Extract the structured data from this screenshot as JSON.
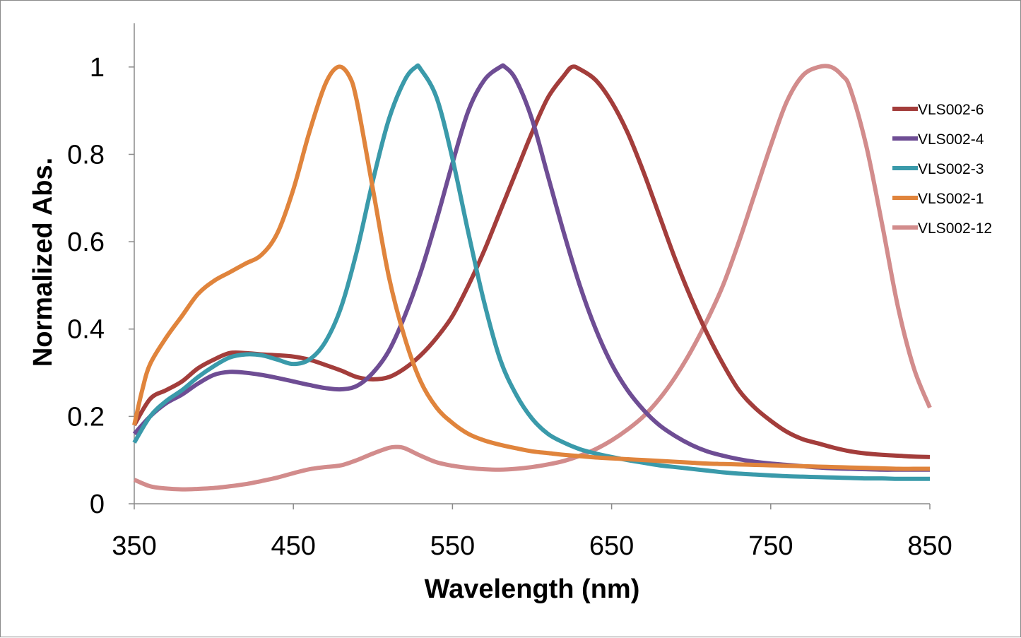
{
  "chart_data": {
    "type": "line",
    "title": "",
    "xlabel": "Wavelength (nm)",
    "ylabel": "Normalized Abs.",
    "xlim": [
      350,
      850
    ],
    "ylim": [
      0,
      1.1
    ],
    "xticks": [
      350,
      450,
      550,
      650,
      750,
      850
    ],
    "yticks": [
      0,
      0.2,
      0.4,
      0.6,
      0.8,
      1
    ],
    "xtick_labels": [
      "350",
      "450",
      "550",
      "650",
      "750",
      "850"
    ],
    "ytick_labels": [
      "0",
      "0.2",
      "0.4",
      "0.6",
      "0.8",
      "1"
    ],
    "grid": false,
    "legend_position": "right",
    "series": [
      {
        "name": "VLS002-6",
        "color": "#a33d3b",
        "x": [
          350,
          360,
          370,
          380,
          390,
          400,
          410,
          420,
          430,
          440,
          450,
          460,
          470,
          480,
          490,
          500,
          510,
          520,
          530,
          540,
          550,
          560,
          570,
          580,
          590,
          600,
          610,
          620,
          625,
          630,
          640,
          650,
          660,
          670,
          680,
          690,
          700,
          710,
          720,
          730,
          740,
          750,
          760,
          770,
          780,
          790,
          800,
          810,
          820,
          830,
          840,
          850
        ],
        "y": [
          0.18,
          0.24,
          0.26,
          0.28,
          0.31,
          0.33,
          0.345,
          0.345,
          0.342,
          0.34,
          0.337,
          0.33,
          0.318,
          0.305,
          0.29,
          0.285,
          0.29,
          0.31,
          0.34,
          0.38,
          0.43,
          0.5,
          0.58,
          0.67,
          0.76,
          0.85,
          0.93,
          0.98,
          1.0,
          0.995,
          0.97,
          0.92,
          0.85,
          0.76,
          0.66,
          0.56,
          0.47,
          0.39,
          0.32,
          0.26,
          0.22,
          0.19,
          0.165,
          0.148,
          0.138,
          0.128,
          0.12,
          0.115,
          0.112,
          0.11,
          0.108,
          0.107
        ]
      },
      {
        "name": "VLS002-4",
        "color": "#6e4d94",
        "x": [
          350,
          360,
          370,
          380,
          390,
          400,
          410,
          420,
          430,
          440,
          450,
          460,
          470,
          480,
          490,
          500,
          510,
          520,
          530,
          540,
          550,
          560,
          570,
          580,
          583,
          590,
          600,
          610,
          620,
          630,
          640,
          650,
          660,
          670,
          680,
          690,
          700,
          710,
          720,
          730,
          740,
          750,
          760,
          770,
          780,
          790,
          800,
          810,
          820,
          830,
          840,
          850
        ],
        "y": [
          0.16,
          0.2,
          0.23,
          0.25,
          0.275,
          0.295,
          0.302,
          0.3,
          0.295,
          0.288,
          0.28,
          0.272,
          0.265,
          0.262,
          0.27,
          0.3,
          0.35,
          0.43,
          0.53,
          0.65,
          0.78,
          0.9,
          0.97,
          1.0,
          1.0,
          0.97,
          0.88,
          0.75,
          0.62,
          0.5,
          0.4,
          0.32,
          0.26,
          0.215,
          0.18,
          0.155,
          0.135,
          0.12,
          0.11,
          0.102,
          0.096,
          0.092,
          0.089,
          0.086,
          0.083,
          0.081,
          0.08,
          0.079,
          0.078,
          0.078,
          0.078,
          0.078
        ]
      },
      {
        "name": "VLS002-3",
        "color": "#3a9aaa",
        "x": [
          350,
          360,
          370,
          380,
          390,
          400,
          410,
          420,
          430,
          440,
          450,
          460,
          470,
          480,
          490,
          500,
          510,
          520,
          527,
          530,
          540,
          550,
          560,
          570,
          580,
          590,
          600,
          610,
          620,
          630,
          640,
          650,
          660,
          670,
          680,
          690,
          700,
          710,
          720,
          730,
          740,
          750,
          760,
          770,
          780,
          790,
          800,
          810,
          820,
          830,
          840,
          850
        ],
        "y": [
          0.14,
          0.2,
          0.235,
          0.26,
          0.29,
          0.315,
          0.335,
          0.342,
          0.34,
          0.33,
          0.32,
          0.33,
          0.37,
          0.45,
          0.58,
          0.74,
          0.88,
          0.97,
          1.0,
          0.995,
          0.93,
          0.79,
          0.62,
          0.46,
          0.33,
          0.25,
          0.195,
          0.16,
          0.14,
          0.125,
          0.115,
          0.107,
          0.1,
          0.094,
          0.088,
          0.084,
          0.08,
          0.076,
          0.072,
          0.069,
          0.067,
          0.065,
          0.063,
          0.062,
          0.061,
          0.06,
          0.059,
          0.058,
          0.058,
          0.057,
          0.057,
          0.057
        ]
      },
      {
        "name": "VLS002-1",
        "color": "#e0843c",
        "x": [
          350,
          355,
          360,
          370,
          380,
          390,
          400,
          410,
          420,
          430,
          440,
          450,
          460,
          470,
          478,
          485,
          490,
          500,
          510,
          520,
          530,
          540,
          550,
          560,
          570,
          580,
          590,
          600,
          610,
          620,
          630,
          640,
          650,
          660,
          670,
          680,
          690,
          700,
          710,
          720,
          730,
          740,
          750,
          760,
          770,
          780,
          790,
          800,
          810,
          820,
          830,
          840,
          850
        ],
        "y": [
          0.18,
          0.26,
          0.32,
          0.38,
          0.43,
          0.48,
          0.51,
          0.53,
          0.55,
          0.57,
          0.62,
          0.72,
          0.85,
          0.96,
          1.0,
          0.98,
          0.92,
          0.72,
          0.52,
          0.38,
          0.28,
          0.22,
          0.185,
          0.16,
          0.145,
          0.135,
          0.127,
          0.12,
          0.116,
          0.112,
          0.109,
          0.106,
          0.104,
          0.102,
          0.1,
          0.098,
          0.096,
          0.094,
          0.092,
          0.091,
          0.09,
          0.089,
          0.088,
          0.087,
          0.086,
          0.085,
          0.084,
          0.083,
          0.082,
          0.081,
          0.08,
          0.08,
          0.08
        ]
      },
      {
        "name": "VLS002-12",
        "color": "#d28c8c",
        "x": [
          350,
          360,
          370,
          380,
          390,
          400,
          410,
          420,
          430,
          440,
          450,
          460,
          470,
          480,
          490,
          500,
          510,
          515,
          520,
          530,
          540,
          550,
          560,
          570,
          580,
          590,
          600,
          610,
          620,
          630,
          640,
          650,
          660,
          670,
          680,
          690,
          700,
          710,
          720,
          730,
          740,
          750,
          760,
          770,
          780,
          788,
          795,
          800,
          810,
          820,
          830,
          840,
          850
        ],
        "y": [
          0.055,
          0.04,
          0.035,
          0.033,
          0.034,
          0.036,
          0.04,
          0.045,
          0.052,
          0.06,
          0.07,
          0.079,
          0.084,
          0.088,
          0.1,
          0.115,
          0.128,
          0.13,
          0.127,
          0.11,
          0.095,
          0.087,
          0.082,
          0.079,
          0.078,
          0.08,
          0.084,
          0.09,
          0.098,
          0.11,
          0.125,
          0.145,
          0.17,
          0.2,
          0.24,
          0.29,
          0.35,
          0.42,
          0.5,
          0.6,
          0.71,
          0.82,
          0.92,
          0.98,
          1.0,
          1.0,
          0.98,
          0.95,
          0.82,
          0.64,
          0.45,
          0.31,
          0.22
        ]
      }
    ]
  }
}
